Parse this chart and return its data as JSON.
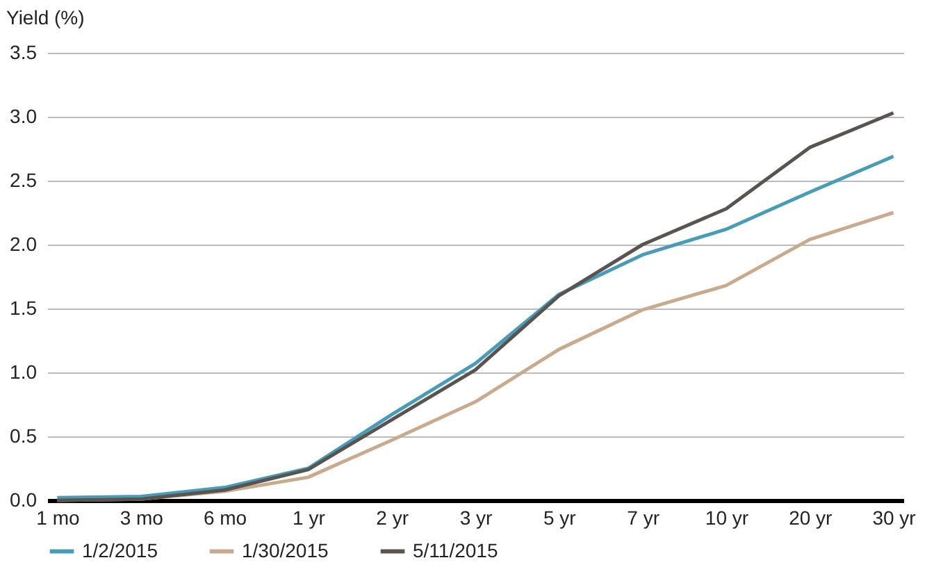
{
  "chart_data": {
    "type": "line",
    "ylabel": "Yield (%)",
    "categories": [
      "1 mo",
      "3 mo",
      "6 mo",
      "1 yr",
      "2 yr",
      "3 yr",
      "5 yr",
      "7 yr",
      "10 yr",
      "20 yr",
      "30 yr"
    ],
    "series": [
      {
        "name": "1/2/2015",
        "color": "#4a9bb8",
        "values": [
          0.02,
          0.03,
          0.1,
          0.25,
          0.67,
          1.07,
          1.61,
          1.92,
          2.12,
          2.41,
          2.69
        ]
      },
      {
        "name": "1/30/2015",
        "color": "#c8ab8f",
        "values": [
          0.0,
          0.01,
          0.07,
          0.18,
          0.47,
          0.77,
          1.18,
          1.49,
          1.68,
          2.04,
          2.25
        ]
      },
      {
        "name": "5/11/2015",
        "color": "#5a5450",
        "values": [
          0.0,
          0.01,
          0.08,
          0.24,
          0.63,
          1.02,
          1.6,
          2.0,
          2.28,
          2.76,
          3.03
        ]
      }
    ],
    "ylim": [
      0,
      3.5
    ],
    "yticks": [
      {
        "value": 0,
        "label": "0.0"
      },
      {
        "value": 0.5,
        "label": "0.5"
      },
      {
        "value": 1,
        "label": "1.0"
      },
      {
        "value": 1.5,
        "label": "1.5"
      },
      {
        "value": 2,
        "label": "2.0"
      },
      {
        "value": 2.5,
        "label": "2.5"
      },
      {
        "value": 3,
        "label": "3.0"
      },
      {
        "value": 3.5,
        "label": "3.5"
      }
    ],
    "grid": "y",
    "legend": "bottom",
    "line_style": "solid"
  }
}
